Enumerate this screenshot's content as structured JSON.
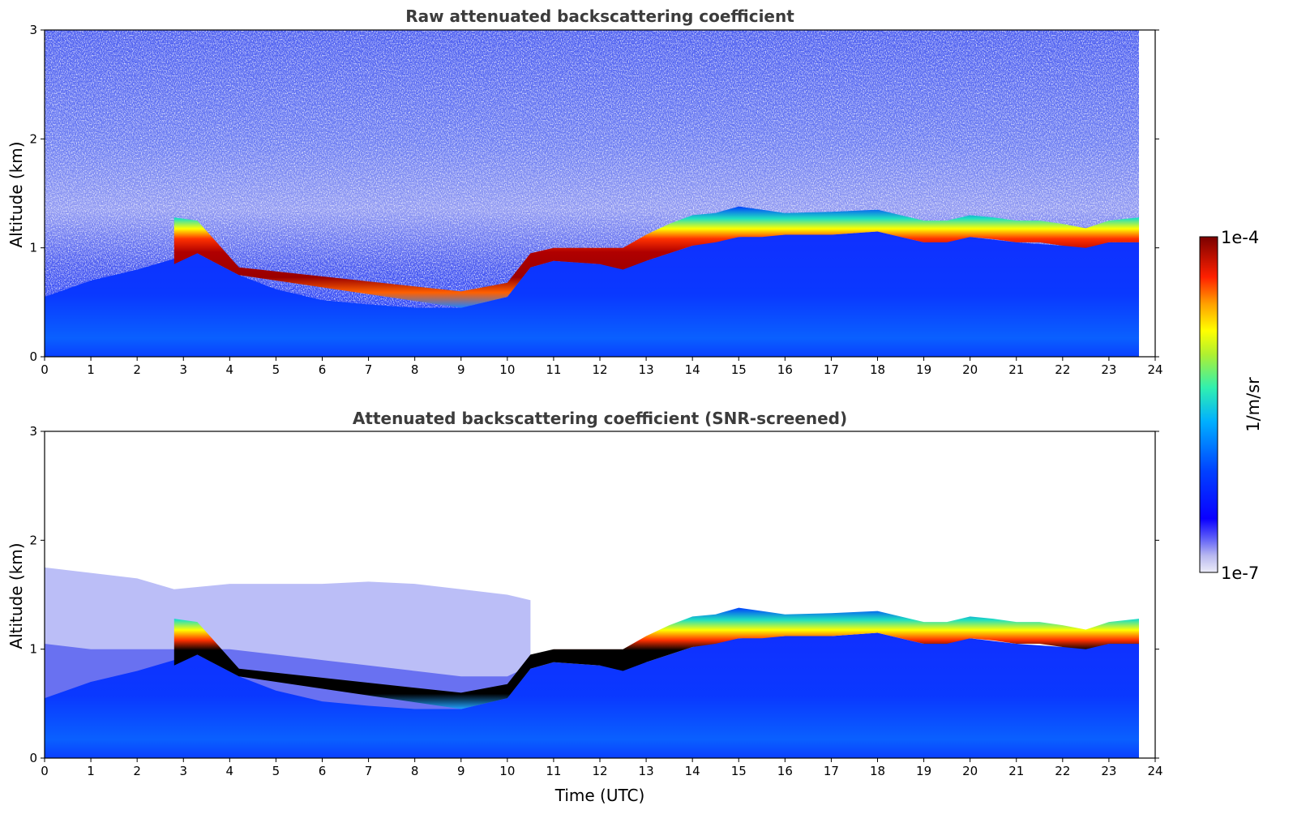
{
  "chart_data": [
    {
      "type": "heatmap",
      "title": "Raw attenuated backscattering coefficient",
      "xlabel": "",
      "ylabel": "Altitude (km)",
      "xlim": [
        0,
        24
      ],
      "ylim": [
        0,
        3
      ],
      "x_ticks": [
        "0",
        "1",
        "2",
        "3",
        "4",
        "5",
        "6",
        "7",
        "8",
        "9",
        "10",
        "11",
        "12",
        "13",
        "14",
        "15",
        "16",
        "17",
        "18",
        "19",
        "20",
        "21",
        "22",
        "23",
        "24"
      ],
      "y_ticks": [
        "0",
        "1",
        "2",
        "3"
      ],
      "data_end_time": 23.65,
      "cloud_layer": {
        "time": [
          2.8,
          3.3,
          4.2,
          9.0,
          10.0,
          10.5,
          11.0,
          12.0,
          12.5,
          13.0,
          13.5,
          14.0,
          14.5,
          15.0,
          15.5,
          16.0,
          17.0,
          18.0,
          18.5,
          19.0,
          19.5,
          20.0,
          20.5,
          21.0,
          21.5,
          22.0,
          22.5,
          23.0,
          23.65
        ],
        "base_km": [
          0.85,
          0.95,
          0.75,
          0.45,
          0.55,
          0.82,
          0.88,
          0.85,
          0.8,
          0.88,
          0.95,
          1.02,
          1.05,
          1.1,
          1.1,
          1.12,
          1.12,
          1.15,
          1.1,
          1.05,
          1.05,
          1.1,
          1.08,
          1.05,
          1.05,
          1.02,
          1.0,
          1.05,
          1.05
        ],
        "top_km": [
          1.28,
          1.25,
          0.82,
          0.6,
          0.68,
          0.95,
          1.0,
          1.0,
          1.0,
          1.12,
          1.22,
          1.3,
          1.32,
          1.38,
          1.35,
          1.32,
          1.33,
          1.35,
          1.3,
          1.25,
          1.25,
          1.3,
          1.28,
          1.25,
          1.25,
          1.22,
          1.18,
          1.25,
          1.28
        ]
      }
    },
    {
      "type": "heatmap",
      "title": "Attenuated backscattering coefficient (SNR-screened)",
      "xlabel": "Time (UTC)",
      "ylabel": "Altitude (km)",
      "xlim": [
        0,
        24
      ],
      "ylim": [
        0,
        3
      ],
      "x_ticks": [
        "0",
        "1",
        "2",
        "3",
        "4",
        "5",
        "6",
        "7",
        "8",
        "9",
        "10",
        "11",
        "12",
        "13",
        "14",
        "15",
        "16",
        "17",
        "18",
        "19",
        "20",
        "21",
        "22",
        "23",
        "24"
      ],
      "y_ticks": [
        "0",
        "1",
        "2",
        "3"
      ],
      "data_end_time": 23.65
    }
  ],
  "colorbar": {
    "label": "1/m/sr",
    "max_label": "1e-4",
    "min_label": "1e-7",
    "scale": "log",
    "range": [
      1e-07,
      0.0001
    ],
    "colormap": [
      "#e6e6f8",
      "#9a9af0",
      "#0a00ff",
      "#0050ff",
      "#00b8ff",
      "#20e0c0",
      "#a0f040",
      "#ffff00",
      "#ffa000",
      "#ff3000",
      "#d00000",
      "#7a0000"
    ]
  }
}
